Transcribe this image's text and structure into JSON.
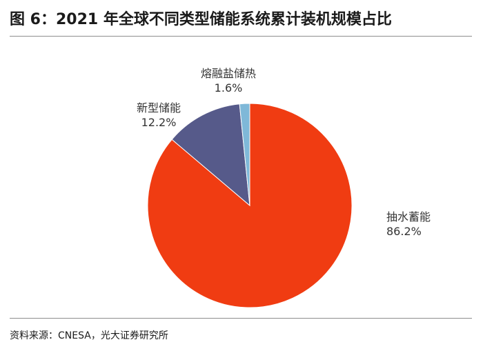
{
  "figure": {
    "title": "图 6：2021 年全球不同类型储能系统累计装机规模占比",
    "source": "资料来源：CNESA，光大证券研究所"
  },
  "chart_data": {
    "type": "pie",
    "title": "图 6：2021 年全球不同类型储能系统累计装机规模占比",
    "slices": [
      {
        "label": "抽水蓄能",
        "value": 86.2,
        "value_text": "86.2%",
        "color": "#f03c12"
      },
      {
        "label": "新型储能",
        "value": 12.2,
        "value_text": "12.2%",
        "color": "#565a8a"
      },
      {
        "label": "熔融盐储热",
        "value": 1.6,
        "value_text": "1.6%",
        "color": "#7fb8d8"
      }
    ],
    "start_angle_deg": 0,
    "direction": "clockwise",
    "legend": "none"
  }
}
